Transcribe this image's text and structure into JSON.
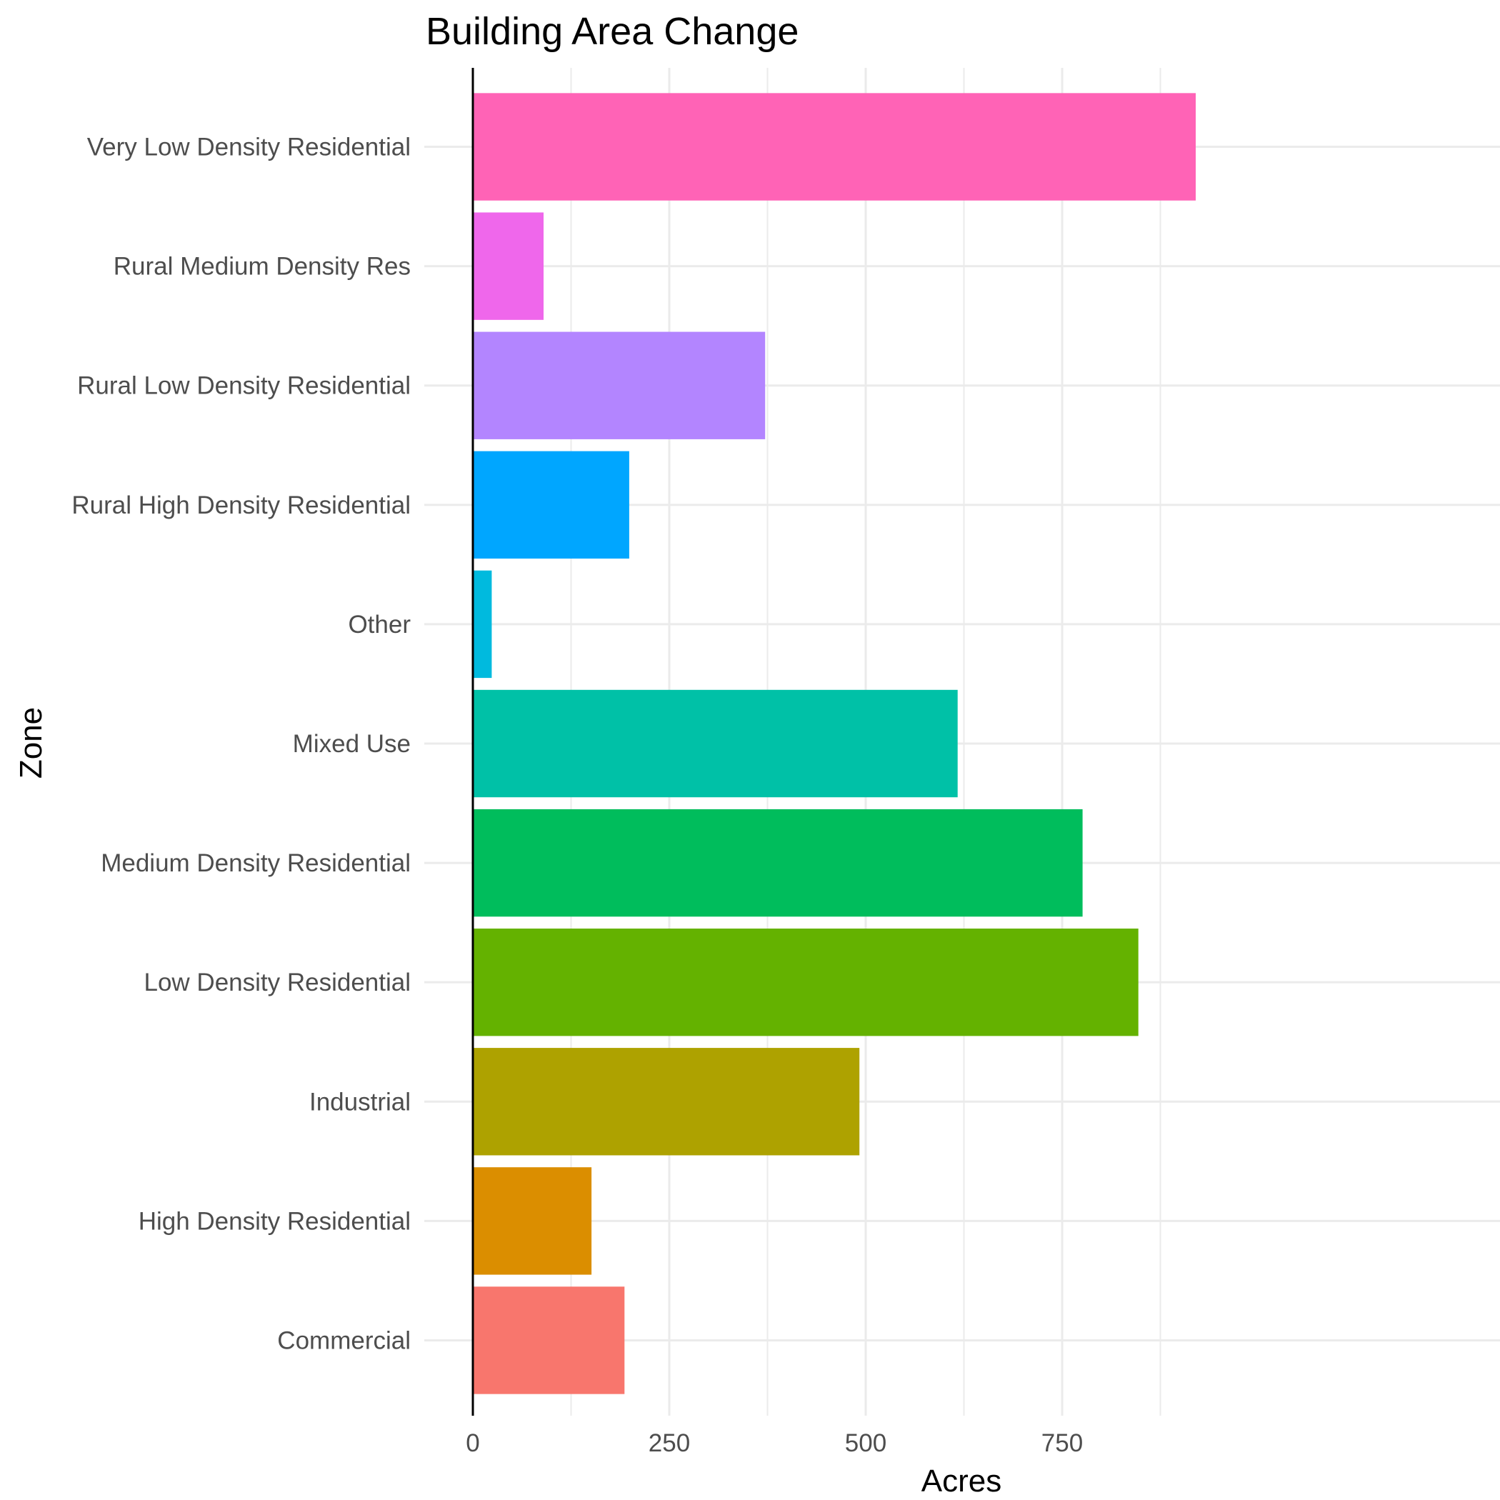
{
  "chart_data": {
    "type": "bar",
    "orientation": "horizontal",
    "title": "Building Area Change",
    "xlabel": "Acres",
    "ylabel": "Zone",
    "categories": [
      "Commercial",
      "High Density Residential",
      "Industrial",
      "Low Density Residential",
      "Medium Density Residential",
      "Mixed Use",
      "Other",
      "Rural High Density Residential",
      "Rural Low Density Residential",
      "Rural Medium Density Res",
      "Very Low Density Residential"
    ],
    "values": [
      193,
      151,
      492,
      847,
      776,
      617,
      24,
      199,
      372,
      90,
      920
    ],
    "colors": [
      "#F8766D",
      "#DB8E00",
      "#AEA200",
      "#64B200",
      "#00BD5C",
      "#00C1A7",
      "#00BADE",
      "#00A6FF",
      "#B385FF",
      "#EF67EB",
      "#FF63B6"
    ],
    "xlim": [
      0,
      975
    ],
    "x_ticks": [
      0,
      250,
      500,
      750
    ],
    "x_tick_labels": [
      "0",
      "250",
      "500",
      "750"
    ],
    "grid": true,
    "legend": "none"
  }
}
